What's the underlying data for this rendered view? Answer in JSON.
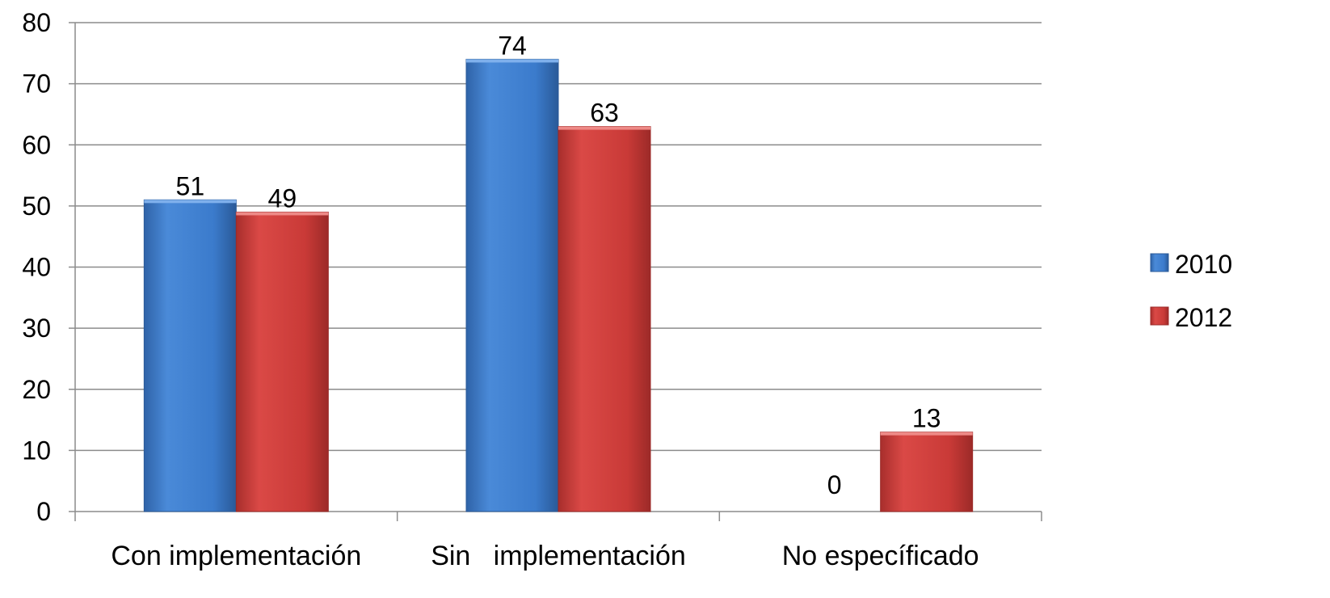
{
  "chart_data": {
    "type": "bar",
    "categories": [
      "Con implementación",
      "Sin   implementación",
      "No específicado"
    ],
    "series": [
      {
        "name": "2010",
        "values": [
          51,
          74,
          0
        ],
        "color": "#3b7bcc"
      },
      {
        "name": "2012",
        "values": [
          49,
          63,
          13
        ],
        "color": "#c93a37"
      }
    ],
    "title": "",
    "xlabel": "",
    "ylabel": "",
    "ylim": [
      0,
      80
    ],
    "y_ticks": [
      "0",
      "10",
      "20",
      "30",
      "40",
      "50",
      "60",
      "70",
      "80"
    ],
    "data_labels": [
      [
        "51",
        "74",
        "0"
      ],
      [
        "49",
        "63",
        "13"
      ]
    ],
    "grid": true,
    "legend_position": "right"
  }
}
